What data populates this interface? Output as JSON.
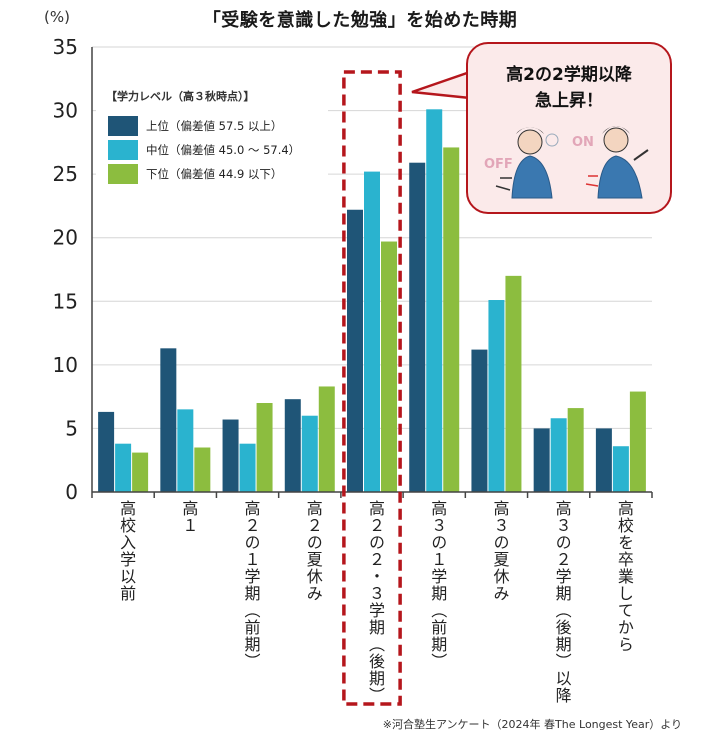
{
  "title": "「受験を意識した勉強」を始めた時期",
  "unit_label": "(%)",
  "note": "※河合塾生アンケート（2024年 春The Longest Year）より",
  "legend_title": "【学力レベル（高３秋時点）】",
  "callout": {
    "line1": "高2の2学期以降",
    "line2": "急上昇！",
    "off_label": "OFF",
    "on_label": "ON"
  },
  "colors": {
    "upper": "#1f5577",
    "middle": "#2ab3cf",
    "lower": "#8cbd3f",
    "highlight": "#b5161c"
  },
  "chart_data": {
    "type": "bar",
    "title": "「受験を意識した勉強」を始めた時期",
    "ylabel": "(%)",
    "ylim": [
      0,
      35
    ],
    "yticks": [
      0,
      5,
      10,
      15,
      20,
      25,
      30,
      35
    ],
    "grid": true,
    "legend_position": "top-left",
    "categories": [
      "高校入学以前",
      "高１",
      "高２の１学期（前期）",
      "高２の夏休み",
      "高２の２・３学期（後期）",
      "高３の１学期（前期）",
      "高３の夏休み",
      "高３の２学期（後期）以降",
      "高校を卒業してから"
    ],
    "highlight_category": 4,
    "series": [
      {
        "name": "上位（偏差値 57.5 以上）",
        "values": [
          6.3,
          11.3,
          5.7,
          7.3,
          22.2,
          25.9,
          11.2,
          5.0,
          5.0
        ]
      },
      {
        "name": "中位（偏差値 45.0 ～ 57.4）",
        "values": [
          3.8,
          6.5,
          3.8,
          6.0,
          25.2,
          30.1,
          15.1,
          5.8,
          3.6
        ]
      },
      {
        "name": "下位（偏差値 44.9 以下）",
        "values": [
          3.1,
          3.5,
          7.0,
          8.3,
          19.7,
          27.1,
          17.0,
          6.6,
          7.9
        ]
      }
    ]
  }
}
